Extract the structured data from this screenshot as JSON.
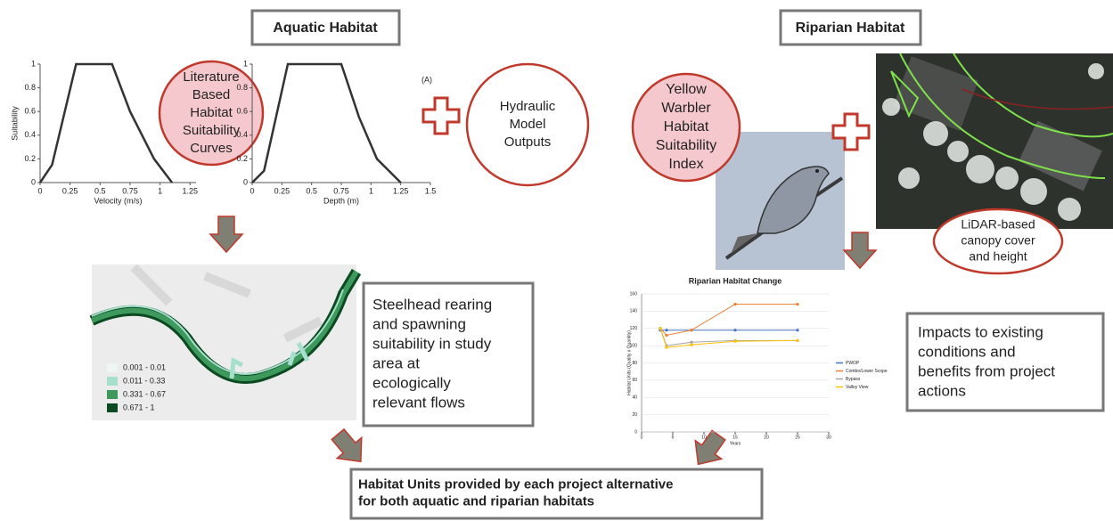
{
  "aquatic_title": "Aquatic Habitat",
  "riparian_title": "Riparian Habitat",
  "literature_circle": [
    "Literature",
    "Based",
    "Habitat",
    "Suitability",
    "Curves"
  ],
  "hydraulic_circle": [
    "Hydraulic",
    "Model",
    "Outputs"
  ],
  "warbler_circle": [
    "Yellow",
    "Warbler",
    "Habitat",
    "Suitability",
    "Index"
  ],
  "lidar_circle": [
    "LiDAR-based",
    "canopy cover",
    "and height"
  ],
  "velocity_chart": {
    "type": "line",
    "y_label": "Suitability",
    "x_label": "Velocity (m/s)",
    "x": [
      0,
      0.1,
      0.3,
      0.6,
      0.75,
      0.95,
      1.1
    ],
    "values": [
      0,
      0.15,
      1,
      1,
      0.6,
      0.2,
      0
    ],
    "color": "#333333",
    "xlim": [
      0,
      1.3
    ],
    "ylim": [
      0,
      1
    ],
    "xticks": [
      0,
      0.25,
      0.5,
      0.75,
      1,
      1.25
    ],
    "yticks": [
      0,
      0.2,
      0.4,
      0.6,
      0.8,
      1
    ]
  },
  "depth_chart": {
    "type": "line",
    "x_label": "Depth (m)",
    "annotation": "(A)",
    "x": [
      0,
      0.1,
      0.3,
      0.75,
      0.9,
      1.05,
      1.25
    ],
    "values": [
      0,
      0.1,
      1,
      1,
      0.55,
      0.2,
      0
    ],
    "color": "#333333",
    "xlim": [
      0,
      1.5
    ],
    "ylim": [
      0,
      1
    ],
    "xticks": [
      0,
      0.25,
      0.5,
      0.75,
      1,
      1.25,
      1.5
    ],
    "yticks": [
      0,
      0.2,
      0.4,
      0.6,
      0.8,
      1
    ]
  },
  "steelhead_box": [
    "Steelhead rearing",
    "and spawning",
    "suitability in study",
    "area at",
    "ecologically",
    "relevant flows"
  ],
  "map_legend": [
    {
      "label": "0.001 - 0.01",
      "color": "#eef6f2"
    },
    {
      "label": "0.011 - 0.33",
      "color": "#a6e0cc"
    },
    {
      "label": "0.331 - 0.67",
      "color": "#3d9a5c"
    },
    {
      "label": "0.671 - 1",
      "color": "#0c4a22"
    }
  ],
  "riparian_chart": {
    "type": "line",
    "title": "Riparian Habitat Change",
    "x_label": "Years",
    "y_label": "Habitat Units (Quality x Quantity)",
    "grid": true,
    "x": [
      3,
      4,
      8,
      15,
      25
    ],
    "series": [
      {
        "name": "PWOP",
        "color": "#4472c4",
        "values": [
          118,
          118,
          118,
          118,
          118
        ]
      },
      {
        "name": "Combo/Lower Scope",
        "color": "#ed7d31",
        "values": [
          120,
          112,
          118,
          148,
          148
        ]
      },
      {
        "name": "Bypass",
        "color": "#a5a5a5",
        "values": [
          120,
          100,
          104,
          106,
          106
        ]
      },
      {
        "name": "Valley View",
        "color": "#ffc000",
        "values": [
          120,
          98,
          101,
          105,
          106
        ]
      }
    ],
    "xlim": [
      0,
      30
    ],
    "ylim": [
      0,
      160
    ],
    "xticks": [
      0,
      5,
      10,
      15,
      20,
      25,
      30
    ],
    "yticks": [
      0,
      20,
      40,
      60,
      80,
      100,
      120,
      140,
      160
    ]
  },
  "impacts_box": [
    "Impacts to existing",
    "conditions and",
    "benefits from project",
    "actions"
  ],
  "habitat_units_box": [
    "Habitat Units provided by each project alternative",
    "for both aquatic and riparian habitats"
  ]
}
